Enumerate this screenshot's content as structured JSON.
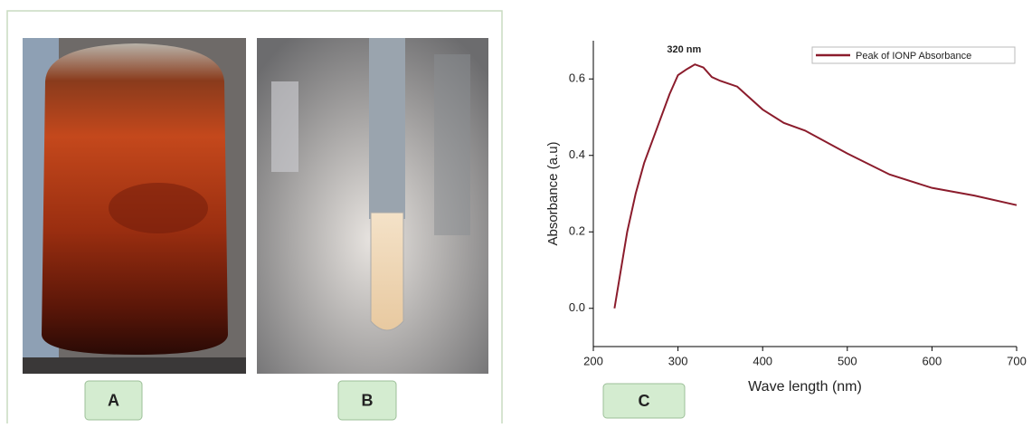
{
  "panels": [
    {
      "label": "A"
    },
    {
      "label": "B"
    },
    {
      "label": "C"
    }
  ],
  "chart_data": {
    "type": "line",
    "x_label": "Wave length (nm)",
    "y_label": "Absorbance (a.u)",
    "annotation": "320 nm",
    "x": [
      225,
      240,
      250,
      260,
      275,
      290,
      300,
      310,
      320,
      330,
      340,
      350,
      370,
      400,
      425,
      450,
      500,
      550,
      600,
      650,
      700
    ],
    "series": [
      {
        "name": "Peak of IONP Absorbance",
        "color": "#8b1c2c",
        "values": [
          0.0,
          0.2,
          0.3,
          0.38,
          0.47,
          0.56,
          0.61,
          0.625,
          0.638,
          0.63,
          0.605,
          0.595,
          0.58,
          0.52,
          0.485,
          0.465,
          0.405,
          0.35,
          0.315,
          0.295,
          0.27
        ]
      }
    ],
    "xlim": [
      200,
      700
    ],
    "xticks": [
      200,
      300,
      400,
      500,
      600,
      700
    ],
    "ylim": [
      -0.1,
      0.7
    ],
    "yticks": [
      {
        "value": 0,
        "label": "0.0"
      },
      0.2,
      0.4,
      0.6
    ],
    "legend": "upper right"
  }
}
